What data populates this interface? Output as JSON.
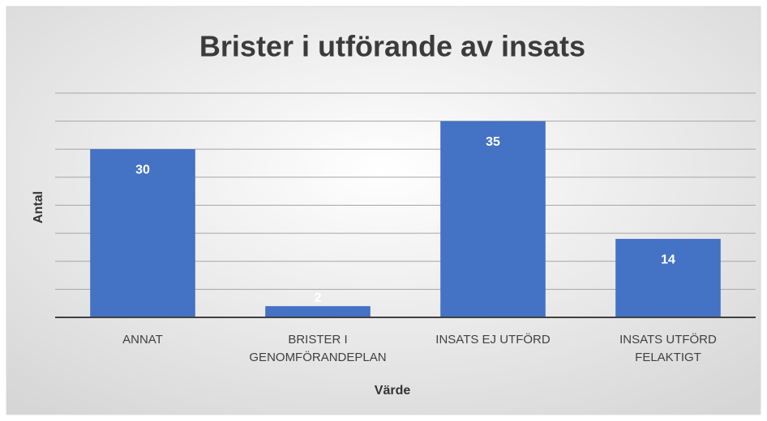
{
  "chart_data": {
    "type": "bar",
    "title": "Brister i utförande av insats",
    "x_label": "Värde",
    "y_label": "Antal",
    "categories": [
      "ANNAT",
      "BRISTER I GENOMFÖRANDEPLAN",
      "INSATS EJ UTFÖRD",
      "INSATS UTFÖRD FELAKTIGT"
    ],
    "values": [
      30,
      2,
      35,
      14
    ],
    "color": "#4472c4",
    "ylim": [
      0,
      40
    ],
    "yticks": [
      0,
      5,
      10,
      15,
      20,
      25,
      30,
      35,
      40
    ],
    "grid": true
  }
}
